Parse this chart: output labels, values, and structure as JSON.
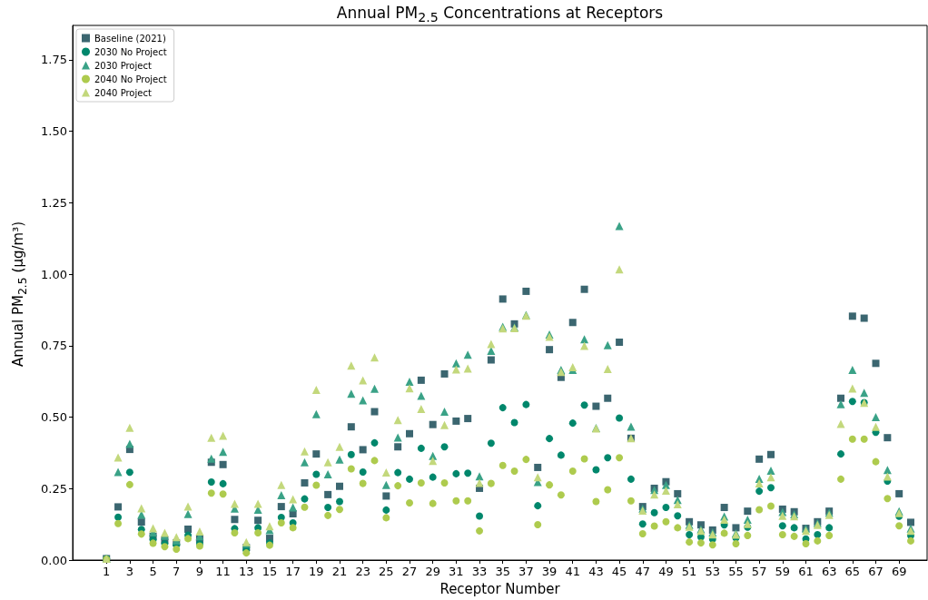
{
  "chart_data": {
    "type": "scatter",
    "title": "Annual PM$_{2.5}$ Concentrations at Receptors",
    "xlabel": "Receptor Number",
    "ylabel": "Annual PM$_{2.5}$ (μg/m³)",
    "legend": "top left",
    "x": [
      1,
      2,
      3,
      4,
      5,
      6,
      7,
      8,
      9,
      10,
      11,
      12,
      13,
      14,
      15,
      16,
      17,
      18,
      19,
      20,
      21,
      22,
      23,
      24,
      25,
      26,
      27,
      28,
      29,
      30,
      31,
      32,
      33,
      34,
      35,
      36,
      37,
      38,
      39,
      40,
      41,
      42,
      43,
      44,
      45,
      46,
      47,
      48,
      49,
      50,
      51,
      52,
      53,
      54,
      55,
      56,
      57,
      58,
      59,
      60,
      61,
      62,
      63,
      64,
      65,
      66,
      67,
      68,
      69,
      70
    ],
    "xlim": [
      -1.9,
      71.4
    ],
    "xticks": [
      1,
      3,
      5,
      7,
      9,
      11,
      13,
      15,
      17,
      19,
      21,
      23,
      25,
      27,
      29,
      31,
      33,
      35,
      37,
      39,
      41,
      43,
      45,
      47,
      49,
      51,
      53,
      55,
      57,
      59,
      61,
      63,
      65,
      67,
      69
    ],
    "ylim": [
      0,
      1.87
    ],
    "yticks": [
      {
        "value": 0,
        "label": "0.00"
      },
      {
        "value": 0.25,
        "label": "0.25"
      },
      {
        "value": 0.5,
        "label": "0.50"
      },
      {
        "value": 0.75,
        "label": "0.75"
      },
      {
        "value": 1,
        "label": "1.00"
      },
      {
        "value": 1.25,
        "label": "1.25"
      },
      {
        "value": 1.5,
        "label": "1.50"
      },
      {
        "value": 1.75,
        "label": "1.75"
      }
    ],
    "series": [
      {
        "name": "Baseline (2021)",
        "color": "#3b6670",
        "marker": "square",
        "values": [
          0.005,
          0.186,
          0.387,
          0.133,
          0.083,
          0.07,
          0.06,
          0.108,
          0.073,
          0.342,
          0.334,
          0.142,
          0.044,
          0.139,
          0.076,
          0.187,
          0.162,
          0.27,
          0.371,
          0.229,
          0.258,
          0.466,
          0.386,
          0.519,
          0.224,
          0.396,
          0.442,
          0.629,
          0.474,
          0.651,
          0.486,
          0.495,
          0.251,
          0.7,
          0.913,
          0.826,
          0.94,
          0.324,
          0.736,
          0.639,
          0.831,
          0.947,
          0.538,
          0.566,
          0.762,
          0.426,
          0.187,
          0.251,
          0.274,
          0.232,
          0.134,
          0.123,
          0.105,
          0.184,
          0.113,
          0.171,
          0.353,
          0.369,
          0.178,
          0.169,
          0.111,
          0.134,
          0.171,
          0.566,
          0.853,
          0.846,
          0.688,
          0.428,
          0.232,
          0.132
        ]
      },
      {
        "name": "2030 No Project",
        "color": "#00876c",
        "marker": "circle",
        "values": [
          0.005,
          0.15,
          0.307,
          0.107,
          0.071,
          0.057,
          0.053,
          0.087,
          0.057,
          0.273,
          0.267,
          0.11,
          0.035,
          0.113,
          0.06,
          0.149,
          0.13,
          0.214,
          0.3,
          0.184,
          0.205,
          0.369,
          0.308,
          0.41,
          0.175,
          0.306,
          0.283,
          0.391,
          0.29,
          0.396,
          0.302,
          0.304,
          0.154,
          0.409,
          0.533,
          0.481,
          0.544,
          0.19,
          0.425,
          0.367,
          0.479,
          0.542,
          0.316,
          0.358,
          0.497,
          0.283,
          0.126,
          0.166,
          0.184,
          0.155,
          0.089,
          0.081,
          0.073,
          0.123,
          0.078,
          0.115,
          0.241,
          0.253,
          0.12,
          0.113,
          0.074,
          0.089,
          0.113,
          0.371,
          0.555,
          0.551,
          0.447,
          0.276,
          0.153,
          0.086
        ]
      },
      {
        "name": "2030 Project",
        "color": "#3aa287",
        "marker": "triangle",
        "values": [
          0.005,
          0.308,
          0.406,
          0.159,
          0.097,
          0.085,
          0.068,
          0.161,
          0.083,
          0.355,
          0.379,
          0.18,
          0.057,
          0.176,
          0.105,
          0.227,
          0.184,
          0.342,
          0.51,
          0.3,
          0.352,
          0.582,
          0.559,
          0.599,
          0.263,
          0.429,
          0.624,
          0.575,
          0.364,
          0.519,
          0.688,
          0.718,
          0.293,
          0.732,
          0.816,
          0.814,
          0.857,
          0.273,
          0.789,
          0.665,
          0.665,
          0.772,
          0.462,
          0.752,
          1.168,
          0.467,
          0.18,
          0.245,
          0.263,
          0.21,
          0.123,
          0.108,
          0.097,
          0.152,
          0.094,
          0.141,
          0.284,
          0.313,
          0.168,
          0.16,
          0.11,
          0.129,
          0.166,
          0.545,
          0.665,
          0.585,
          0.5,
          0.315,
          0.171,
          0.11
        ]
      },
      {
        "name": "2040 No Project",
        "color": "#aecb4e",
        "marker": "circle",
        "values": [
          0.003,
          0.128,
          0.264,
          0.091,
          0.059,
          0.047,
          0.038,
          0.075,
          0.049,
          0.234,
          0.231,
          0.095,
          0.025,
          0.095,
          0.052,
          0.13,
          0.113,
          0.185,
          0.262,
          0.156,
          0.177,
          0.319,
          0.268,
          0.348,
          0.148,
          0.26,
          0.2,
          0.27,
          0.198,
          0.27,
          0.207,
          0.207,
          0.102,
          0.268,
          0.331,
          0.311,
          0.352,
          0.124,
          0.263,
          0.228,
          0.311,
          0.354,
          0.205,
          0.246,
          0.358,
          0.207,
          0.092,
          0.119,
          0.134,
          0.113,
          0.063,
          0.06,
          0.053,
          0.094,
          0.057,
          0.086,
          0.176,
          0.189,
          0.089,
          0.083,
          0.057,
          0.067,
          0.086,
          0.283,
          0.423,
          0.423,
          0.344,
          0.215,
          0.12,
          0.067
        ]
      },
      {
        "name": "2040 Project",
        "color": "#c3d87c",
        "marker": "triangle",
        "values": [
          0.005,
          0.359,
          0.463,
          0.181,
          0.111,
          0.095,
          0.08,
          0.187,
          0.1,
          0.428,
          0.435,
          0.197,
          0.063,
          0.197,
          0.118,
          0.263,
          0.213,
          0.38,
          0.595,
          0.342,
          0.396,
          0.68,
          0.629,
          0.709,
          0.306,
          0.49,
          0.601,
          0.529,
          0.347,
          0.472,
          0.667,
          0.67,
          0.27,
          0.756,
          0.81,
          0.811,
          0.855,
          0.29,
          0.781,
          0.658,
          0.675,
          0.749,
          0.46,
          0.668,
          1.017,
          0.426,
          0.173,
          0.229,
          0.243,
          0.195,
          0.117,
          0.102,
          0.09,
          0.141,
          0.089,
          0.126,
          0.268,
          0.29,
          0.155,
          0.153,
          0.102,
          0.123,
          0.158,
          0.476,
          0.6,
          0.55,
          0.466,
          0.292,
          0.164,
          0.102
        ]
      }
    ]
  }
}
